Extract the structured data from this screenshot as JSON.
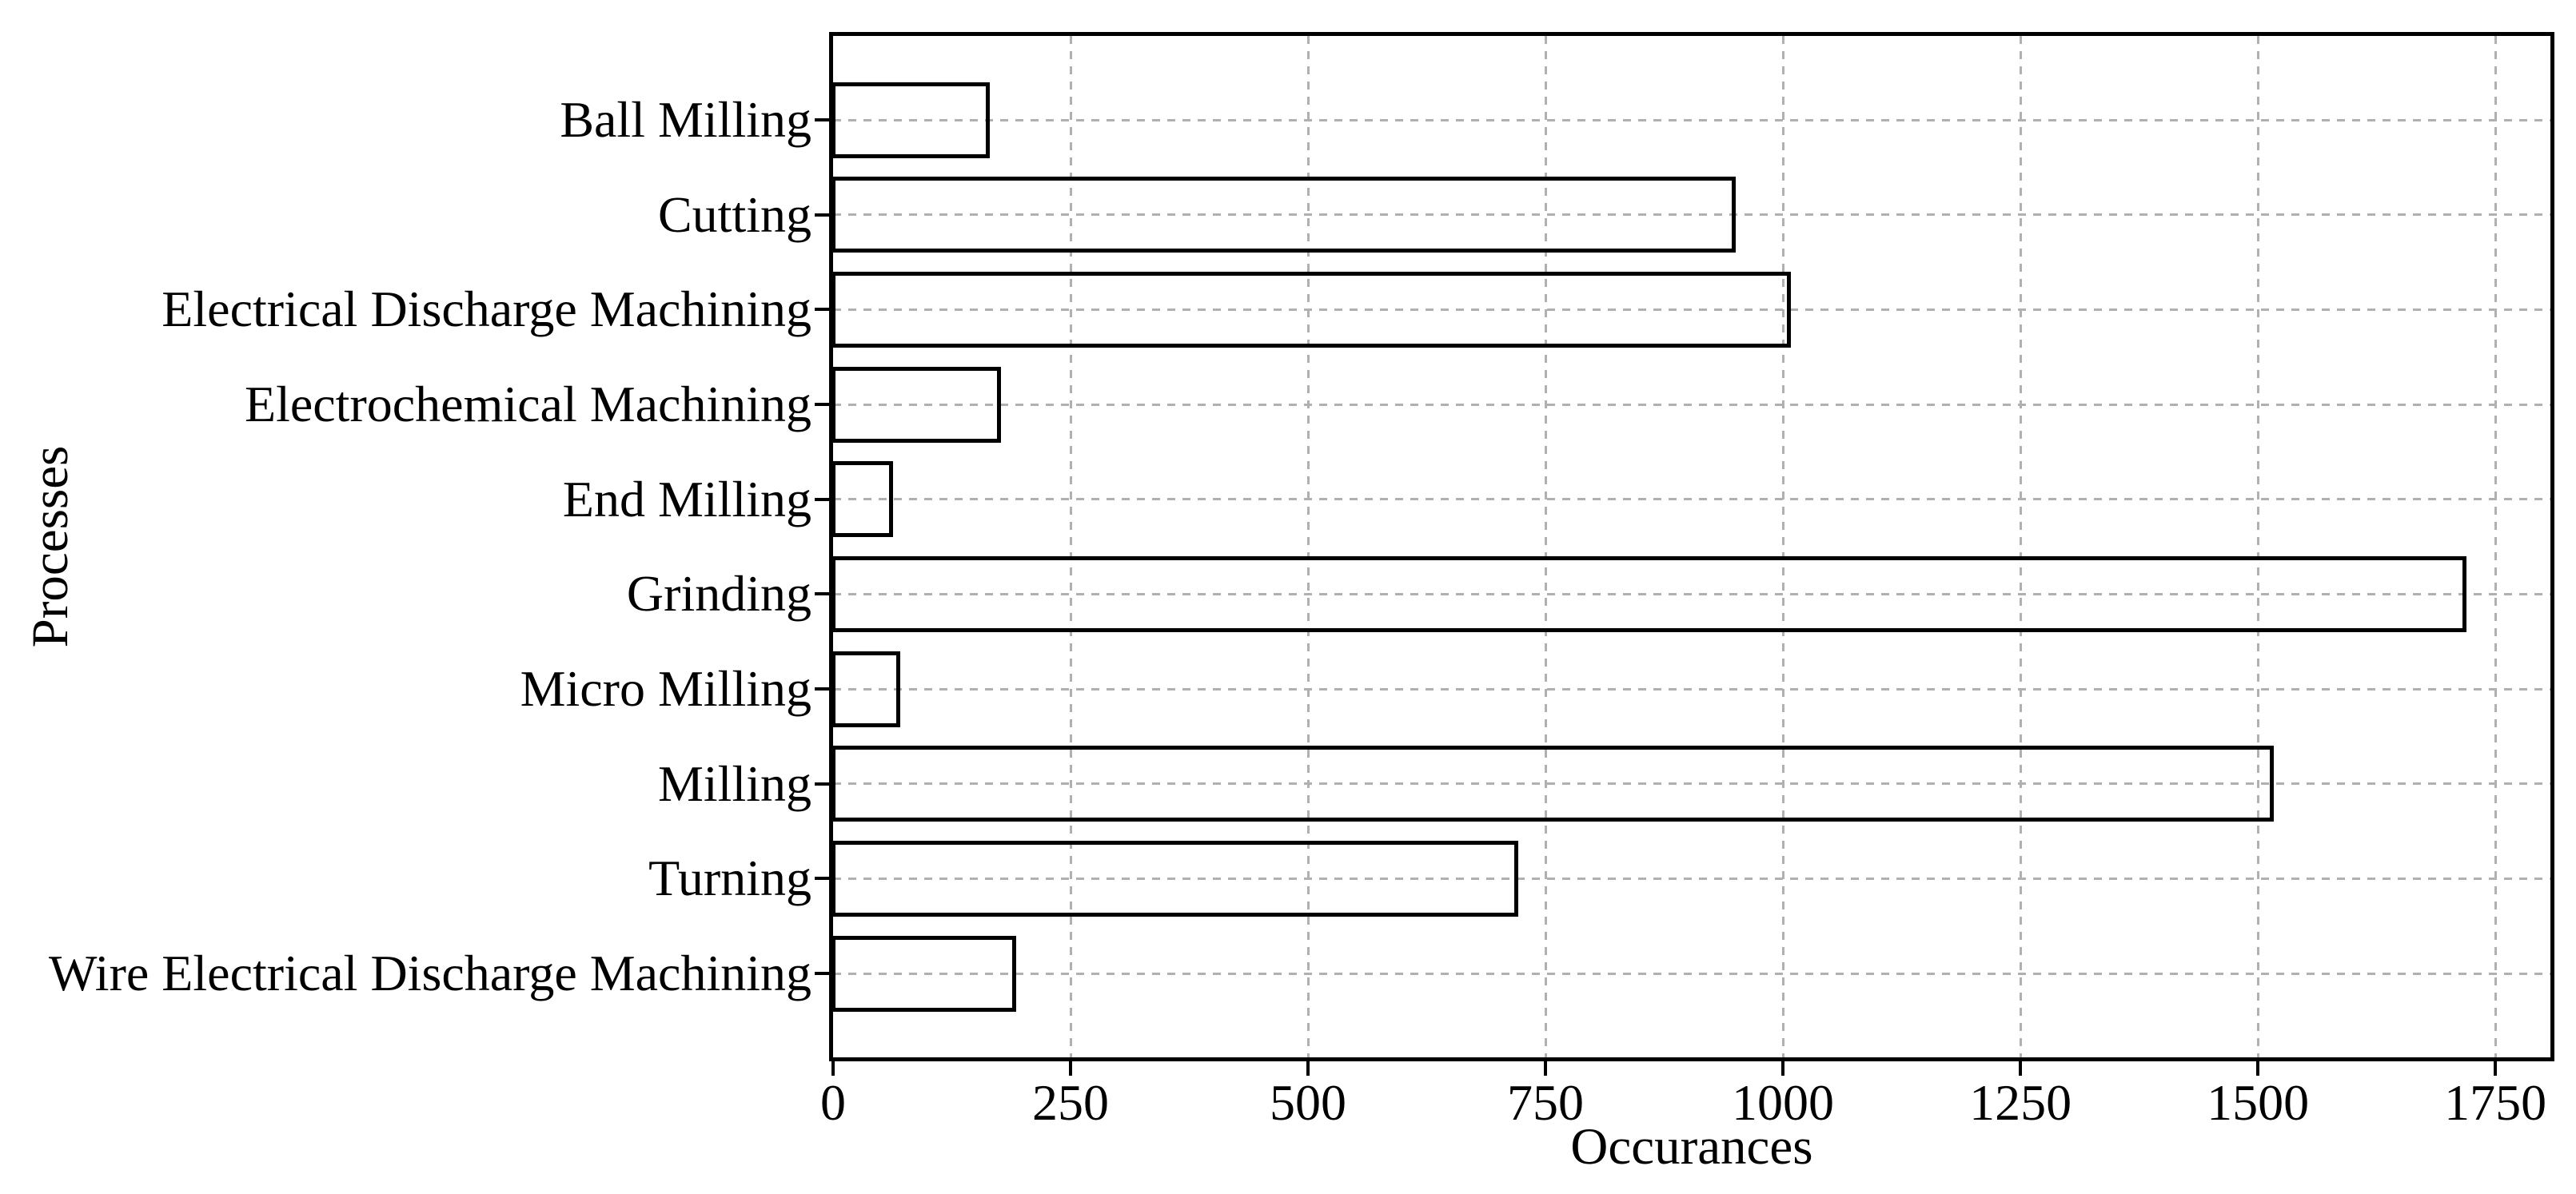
{
  "chart_data": {
    "type": "bar",
    "orientation": "horizontal",
    "title": "",
    "xlabel": "Occurances",
    "ylabel": "Processes",
    "categories": [
      "Ball Milling",
      "Cutting",
      "Electrical Discharge Machining",
      "Electrochemical Machining",
      "End Milling",
      "Grinding",
      "Micro Milling",
      "Milling",
      "Turning",
      "Wire Electrical Discharge Machining"
    ],
    "values": [
      165,
      950,
      1008,
      177,
      63,
      1720,
      71,
      1517,
      721,
      193
    ],
    "xticks": [
      0,
      250,
      500,
      750,
      1000,
      1250,
      1500,
      1750
    ],
    "xlim": [
      0,
      1808
    ],
    "grid": "dashed-both-axes",
    "legend": "none",
    "bar_fill": "transparent",
    "bar_edge_color": "#000000",
    "grid_color": "#b0b0b0",
    "text_color": "#000000",
    "background_color": "#ffffff"
  }
}
